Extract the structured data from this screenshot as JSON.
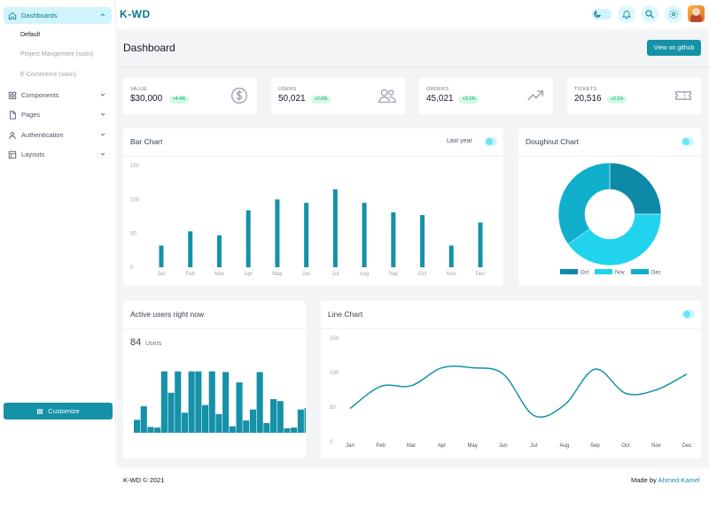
{
  "brand": "K-WD",
  "sidebar": {
    "items": [
      {
        "label": "Dashboards",
        "icon": "home-icon"
      },
      {
        "label": "Components",
        "icon": "grid-icon"
      },
      {
        "label": "Pages",
        "icon": "document-icon"
      },
      {
        "label": "Authentication",
        "icon": "user-icon"
      },
      {
        "label": "Layouts",
        "icon": "layout-icon"
      }
    ],
    "sub_items": [
      "Default",
      "Project Mangement (soon)",
      "E-Commerce (soon)"
    ],
    "customize_label": "Customize"
  },
  "header": {
    "icons": [
      "moon-icon",
      "bell-icon",
      "search-icon",
      "gear-icon",
      "avatar"
    ]
  },
  "page": {
    "title": "Dashboard",
    "github_label": "View on github"
  },
  "stats": [
    {
      "label": "VALUE",
      "value": "$30,000",
      "badge": "+4.4%",
      "icon": "dollar-icon"
    },
    {
      "label": "USERS",
      "value": "50,021",
      "badge": "+2.6%",
      "icon": "users-icon"
    },
    {
      "label": "ORDERS",
      "value": "45,021",
      "badge": "+3.1%",
      "icon": "trend-up-icon"
    },
    {
      "label": "TICKETS",
      "value": "20,516",
      "badge": "+3.1%",
      "icon": "ticket-icon"
    }
  ],
  "colors": {
    "accent": "#1591a8",
    "bar": "#1591a8",
    "donut": [
      "#0e8aa8",
      "#22d3ee",
      "#10b0cc"
    ]
  },
  "bar_chart": {
    "title": "Bar Chart",
    "filter_label": "Last year"
  },
  "doughnut_chart": {
    "title": "Doughnut Chart"
  },
  "active_users": {
    "title": "Active users right now",
    "count": "84",
    "unit": "Users"
  },
  "line_chart": {
    "title": "Line Chart"
  },
  "chart_data": [
    {
      "type": "bar",
      "title": "Bar Chart",
      "categories": [
        "Jan",
        "Feb",
        "Mar",
        "Apr",
        "May",
        "Jun",
        "Jul",
        "Aug",
        "Sep",
        "Oct",
        "Nov",
        "Dec"
      ],
      "values": [
        32,
        53,
        47,
        84,
        100,
        95,
        115,
        95,
        81,
        77,
        32,
        66
      ],
      "yticks": [
        0,
        50,
        100,
        150
      ],
      "ylim": [
        0,
        150
      ]
    },
    {
      "type": "pie",
      "title": "Doughnut Chart",
      "labels": [
        "Oct",
        "Nov",
        "Dec"
      ],
      "values": [
        25,
        40,
        35
      ],
      "legend": "bottom"
    },
    {
      "type": "bar",
      "title": "Active users right now",
      "values": [
        20,
        41,
        9,
        8,
        95,
        62,
        95,
        31,
        95,
        95,
        43,
        95,
        29,
        94,
        10,
        78,
        19,
        36,
        94,
        15,
        52,
        49,
        7,
        8,
        36,
        38
      ],
      "ylim": [
        0,
        100
      ]
    },
    {
      "type": "line",
      "title": "Line Chart",
      "categories": [
        "Jan",
        "Feb",
        "Mar",
        "Apr",
        "May",
        "Jun",
        "Jul",
        "Aug",
        "Sep",
        "Oct",
        "Nov",
        "Dec"
      ],
      "values": [
        48,
        80,
        81,
        107,
        107,
        98,
        38,
        53,
        105,
        70,
        75,
        98
      ],
      "yticks": [
        0,
        50,
        100,
        150
      ],
      "ylim": [
        0,
        150
      ]
    }
  ],
  "footer": {
    "copyright": "K-WD © 2021",
    "made_by": "Made by",
    "author": "Ahmed Kamel"
  }
}
